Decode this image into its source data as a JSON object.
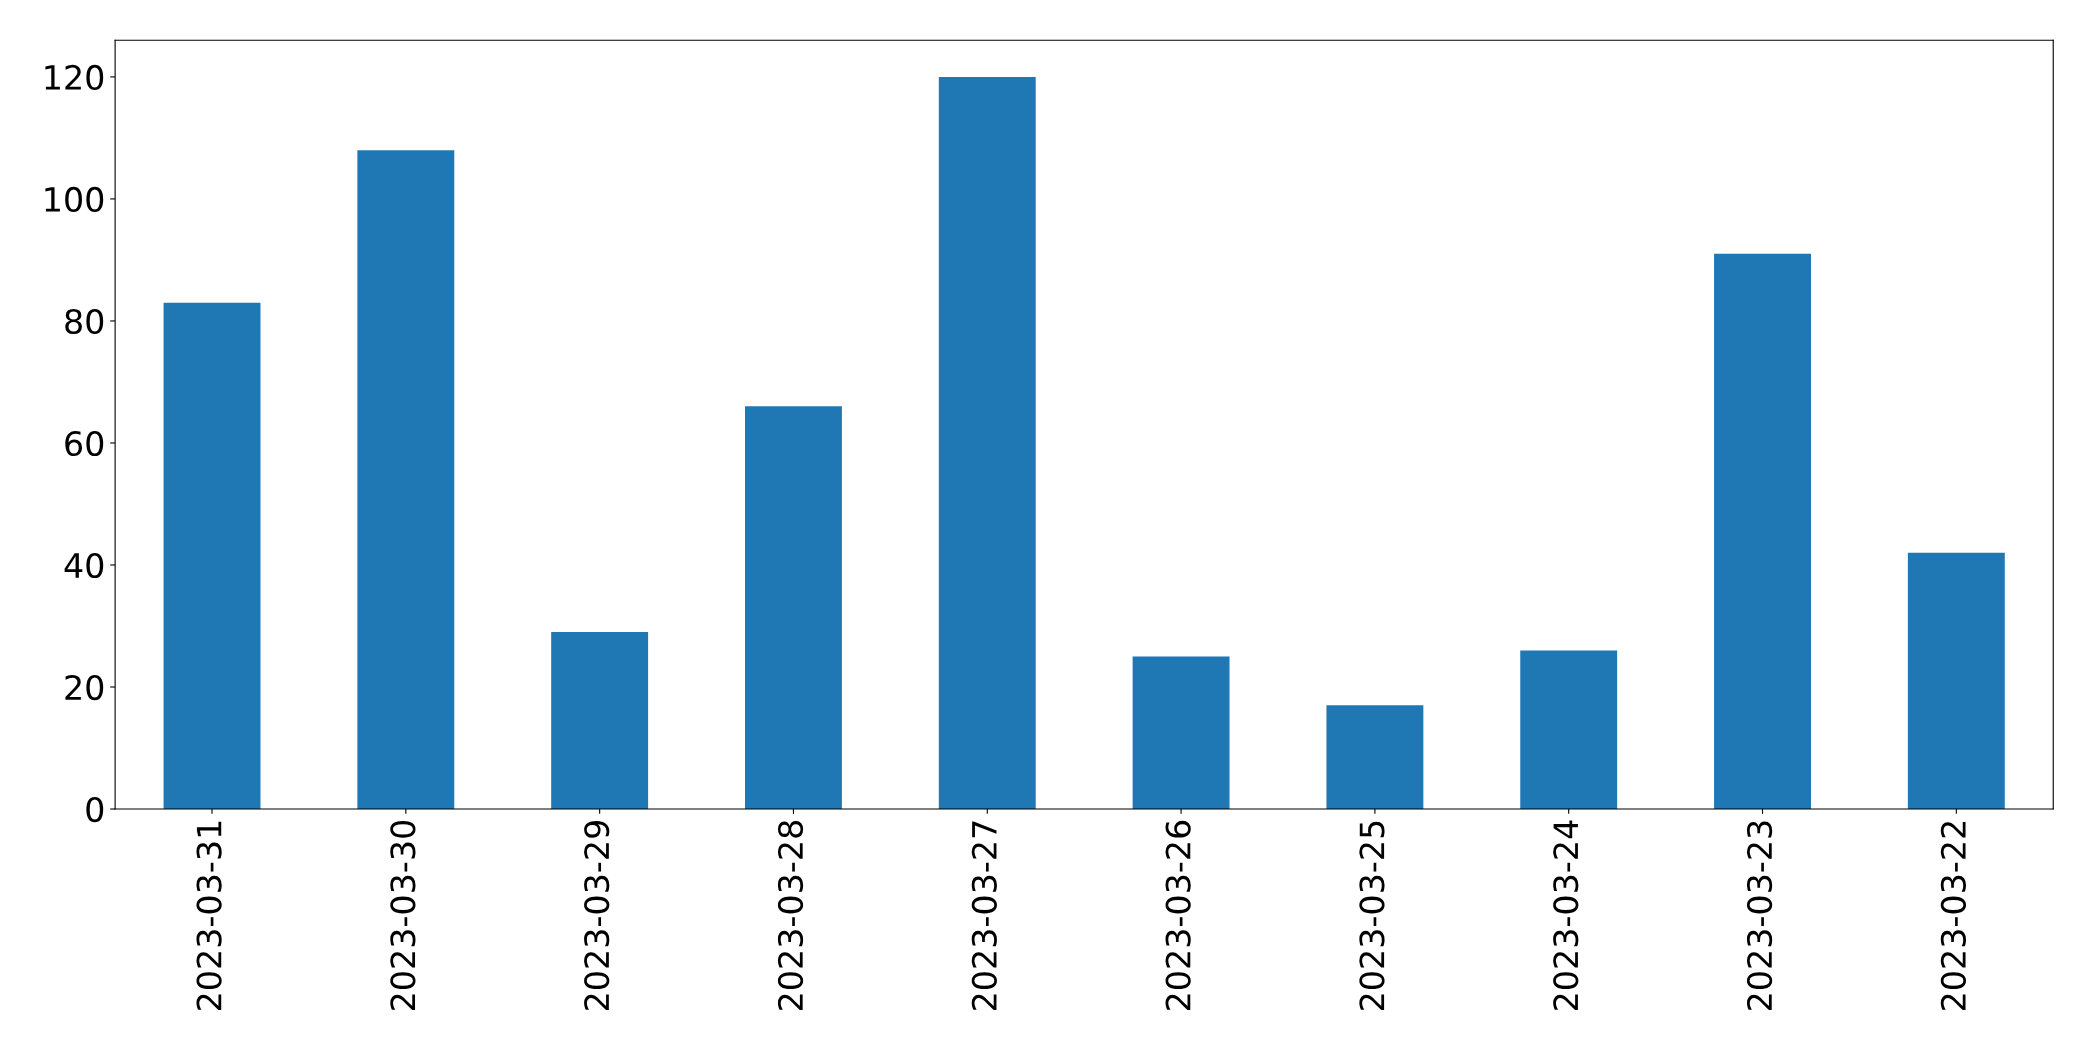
{
  "chart_data": {
    "type": "bar",
    "categories": [
      "2023-03-31",
      "2023-03-30",
      "2023-03-29",
      "2023-03-28",
      "2023-03-27",
      "2023-03-26",
      "2023-03-25",
      "2023-03-24",
      "2023-03-23",
      "2023-03-22"
    ],
    "values": [
      83,
      108,
      29,
      66,
      120,
      25,
      17,
      26,
      91,
      42
    ],
    "color": "#1f77b4",
    "ylim": [
      0,
      126
    ],
    "yticks": [
      0,
      20,
      40,
      60,
      80,
      100,
      120
    ],
    "grid": false
  }
}
